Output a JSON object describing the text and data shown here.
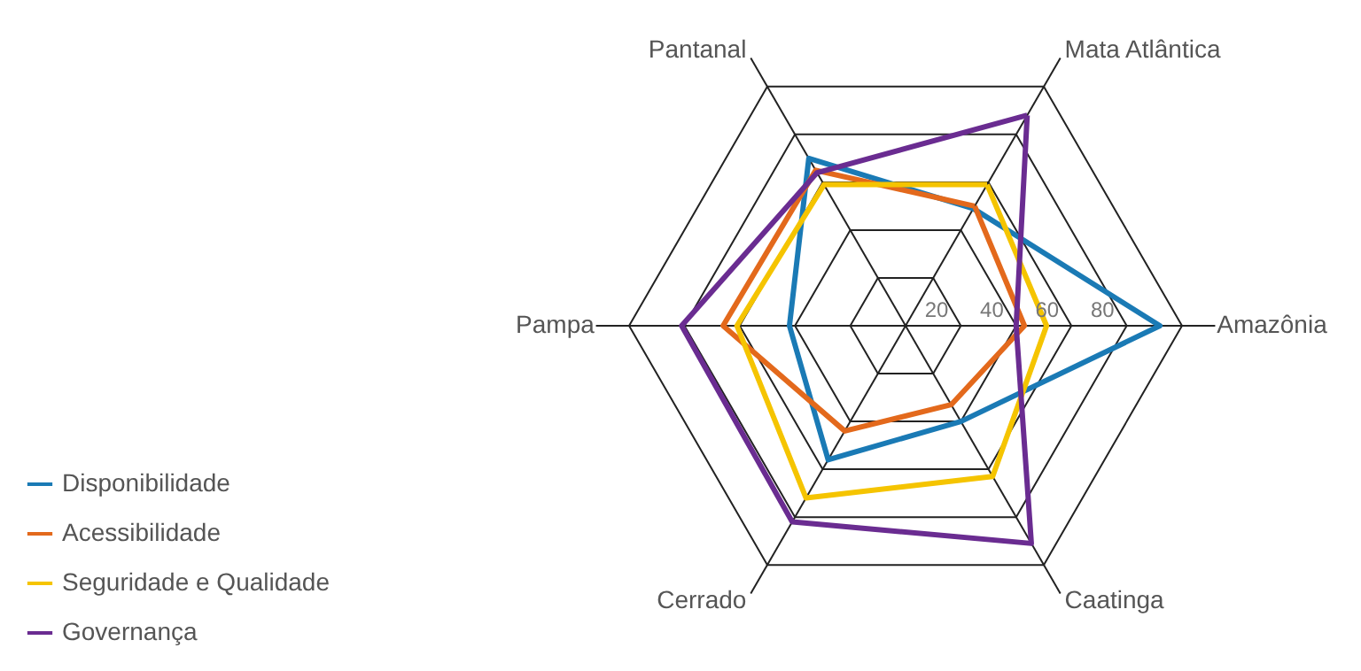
{
  "chart_data": {
    "type": "radar",
    "categories": [
      "Mata Atlântica",
      "Amazônia",
      "Caatinga",
      "Cerrado",
      "Pampa",
      "Pantanal"
    ],
    "ylim": [
      0,
      100
    ],
    "yticks": [
      20,
      40,
      60,
      80
    ],
    "grid": true,
    "legend": "bottom left",
    "series": [
      {
        "name": "Disponibilidade",
        "color": "#1a7ab5",
        "values": [
          49,
          92,
          40,
          56,
          42,
          70
        ]
      },
      {
        "name": "Acessibilidade",
        "color": "#e3691c",
        "values": [
          50,
          43,
          33,
          44,
          66,
          65
        ]
      },
      {
        "name": "Seguridade e Qualidade",
        "color": "#f5c400",
        "values": [
          59,
          51,
          63,
          72,
          61,
          59
        ]
      },
      {
        "name": "Governança",
        "color": "#6a2c91",
        "values": [
          88,
          40,
          91,
          82,
          81,
          64
        ]
      }
    ]
  }
}
